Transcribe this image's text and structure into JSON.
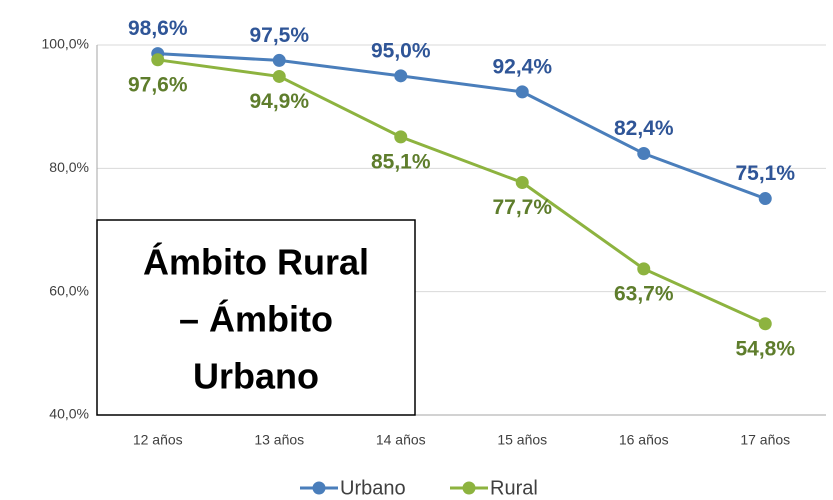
{
  "chart_data": {
    "type": "line",
    "annotation": [
      "Ámbito Rural",
      "– Ámbito",
      "Urbano"
    ],
    "categories": [
      "12 años",
      "13 años",
      "14 años",
      "15 años",
      "16 años",
      "17 años"
    ],
    "series": [
      {
        "name": "Urbano",
        "color": "#4a7ebb",
        "label_color": "#2f5597",
        "values": [
          98.6,
          97.5,
          95.0,
          92.4,
          82.4,
          75.1
        ],
        "value_labels": [
          "98,6%",
          "97,5%",
          "95,0%",
          "92,4%",
          "82,4%",
          "75,1%"
        ]
      },
      {
        "name": "Rural",
        "color": "#8db33f",
        "label_color": "#5e7d2c",
        "values": [
          97.6,
          94.9,
          85.1,
          77.7,
          63.7,
          54.8
        ],
        "value_labels": [
          "97,6%",
          "94,9%",
          "85,1%",
          "77,7%",
          "63,7%",
          "54,8%"
        ]
      }
    ],
    "ylim": [
      40,
      100
    ],
    "yticks": [
      {
        "value": 40,
        "label": "40,0%"
      },
      {
        "value": 60,
        "label": "60,0%"
      },
      {
        "value": 80,
        "label": "80,0%"
      },
      {
        "value": 100,
        "label": "100,0%"
      }
    ],
    "grid": true,
    "legend": "bottom"
  }
}
